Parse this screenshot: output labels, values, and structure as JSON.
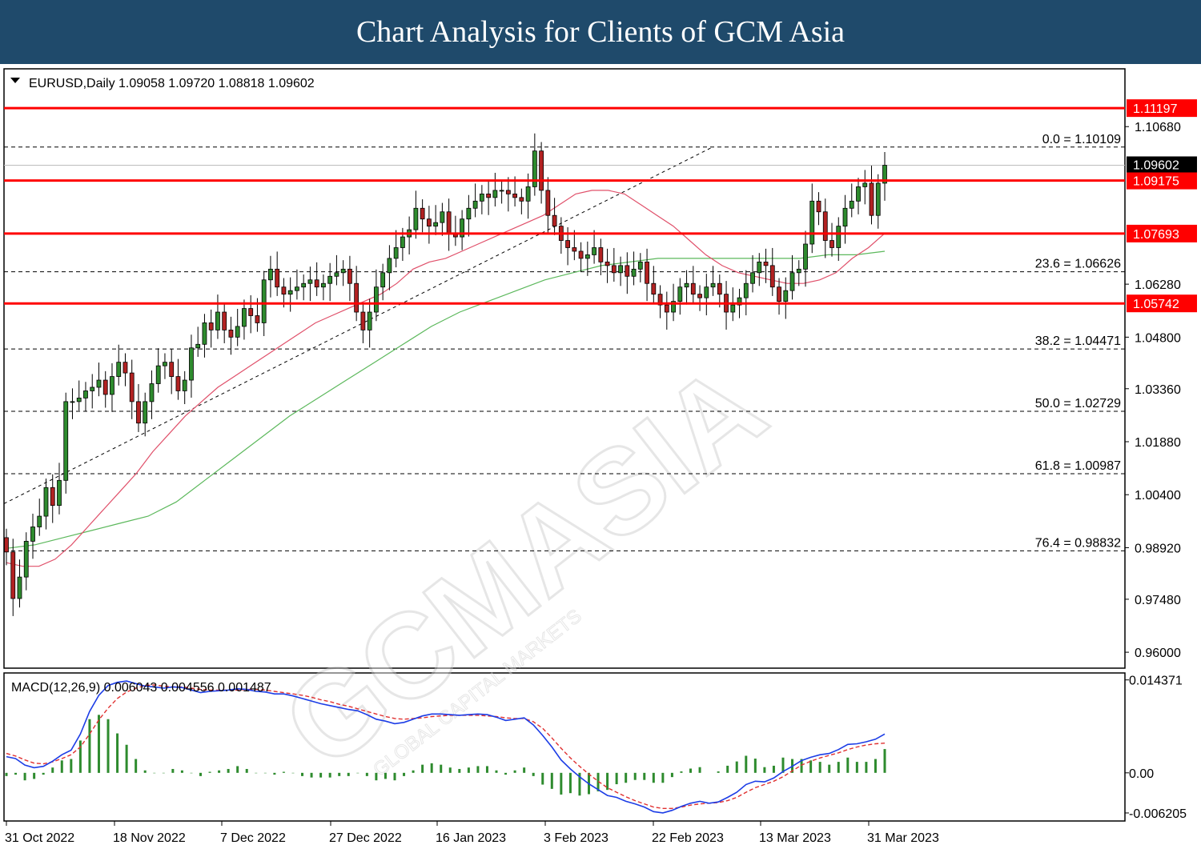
{
  "banner": {
    "title": "Chart Analysis for Clients of GCM Asia"
  },
  "watermark": {
    "brand": "GCMASIA",
    "tagline": "GLOBAL CAPITAL MARKETS"
  },
  "colors": {
    "banner": "#1f4a6b",
    "sr_line": "#ff0000",
    "bull": "#2e8b2e",
    "bear": "#b22222",
    "ma_fast": "#e0506a",
    "ma_slow": "#5cb85c",
    "macd": "#1c3de6",
    "signal": "#e03030",
    "hist": "#2e8b2e"
  },
  "chart_data": [
    {
      "type": "candlestick",
      "symbol": "EURUSD",
      "timeframe": "Daily",
      "header": "EURUSD,Daily  1.09058 1.09720 1.08818 1.09602",
      "ohlc_last": {
        "open": 1.09058,
        "high": 1.0972,
        "low": 1.08818,
        "close": 1.09602
      },
      "ylim": [
        0.956,
        1.1225
      ],
      "y_ticks": [
        "1.10680",
        "1.06280",
        "1.04800",
        "1.03360",
        "1.01880",
        "1.00400",
        "0.98920",
        "0.97480",
        "0.96000"
      ],
      "x_ticks": [
        "31 Oct 2022",
        "18 Nov 2022",
        "7 Dec 2022",
        "27 Dec 2022",
        "16 Jan 2023",
        "3 Feb 2023",
        "22 Feb 2023",
        "13 Mar 2023",
        "31 Mar 2023"
      ],
      "current_price_label": "1.09602",
      "support_resistance": [
        {
          "value": 1.11197,
          "label": "1.11197"
        },
        {
          "value": 1.09175,
          "label": "1.09175"
        },
        {
          "value": 1.07693,
          "label": "1.07693"
        },
        {
          "value": 1.05742,
          "label": "1.05742"
        }
      ],
      "fibonacci": [
        {
          "value": 1.10109,
          "label": "0.0 = 1.10109"
        },
        {
          "value": 1.06626,
          "label": "23.6 = 1.06626"
        },
        {
          "value": 1.04471,
          "label": "38.2 = 1.04471"
        },
        {
          "value": 1.02729,
          "label": "50.0 = 1.02729"
        },
        {
          "value": 1.00987,
          "label": "61.8 = 1.00987"
        },
        {
          "value": 0.98832,
          "label": "76.4 = 0.98832"
        }
      ],
      "closes": [
        0.988,
        0.975,
        0.981,
        0.991,
        0.995,
        0.998,
        1.006,
        1.001,
        1.008,
        1.03,
        1.03,
        1.031,
        1.033,
        1.034,
        1.036,
        1.032,
        1.037,
        1.041,
        1.038,
        1.03,
        1.024,
        1.03,
        1.035,
        1.04,
        1.041,
        1.037,
        1.033,
        1.036,
        1.045,
        1.046,
        1.052,
        1.05,
        1.055,
        1.05,
        1.048,
        1.051,
        1.056,
        1.054,
        1.052,
        1.064,
        1.067,
        1.062,
        1.06,
        1.061,
        1.062,
        1.063,
        1.064,
        1.062,
        1.063,
        1.065,
        1.066,
        1.067,
        1.063,
        1.055,
        1.05,
        1.055,
        1.062,
        1.066,
        1.07,
        1.073,
        1.076,
        1.078,
        1.084,
        1.081,
        1.079,
        1.08,
        1.083,
        1.077,
        1.076,
        1.081,
        1.084,
        1.086,
        1.088,
        1.087,
        1.089,
        1.089,
        1.088,
        1.087,
        1.086,
        1.09,
        1.1,
        1.089,
        1.082,
        1.079,
        1.075,
        1.073,
        1.072,
        1.07,
        1.071,
        1.073,
        1.069,
        1.068,
        1.066,
        1.068,
        1.065,
        1.067,
        1.069,
        1.063,
        1.06,
        1.057,
        1.055,
        1.058,
        1.062,
        1.063,
        1.06,
        1.059,
        1.062,
        1.063,
        1.06,
        1.055,
        1.057,
        1.059,
        1.063,
        1.066,
        1.069,
        1.068,
        1.062,
        1.058,
        1.061,
        1.066,
        1.067,
        1.074,
        1.086,
        1.083,
        1.075,
        1.073,
        1.079,
        1.084,
        1.086,
        1.09,
        1.091,
        1.082,
        1.091,
        1.096
      ],
      "ma_fast_values": [
        0.985,
        0.984,
        0.984,
        0.986,
        0.99,
        0.995,
        1.0,
        1.005,
        1.01,
        1.016,
        1.021,
        1.026,
        1.03,
        1.034,
        1.037,
        1.04,
        1.043,
        1.046,
        1.049,
        1.052,
        1.054,
        1.056,
        1.058,
        1.06,
        1.063,
        1.067,
        1.069,
        1.07,
        1.072,
        1.074,
        1.076,
        1.078,
        1.08,
        1.082,
        1.085,
        1.088,
        1.089,
        1.089,
        1.088,
        1.085,
        1.082,
        1.079,
        1.075,
        1.071,
        1.068,
        1.066,
        1.065,
        1.064,
        1.063,
        1.063,
        1.064,
        1.066,
        1.07,
        1.073,
        1.077
      ],
      "ma_slow_values": [
        0.989,
        0.99,
        0.992,
        0.994,
        0.996,
        0.998,
        1.002,
        1.008,
        1.014,
        1.02,
        1.026,
        1.031,
        1.036,
        1.041,
        1.046,
        1.051,
        1.055,
        1.058,
        1.061,
        1.064,
        1.066,
        1.068,
        1.069,
        1.07,
        1.07,
        1.07,
        1.07,
        1.07,
        1.07,
        1.071,
        1.071,
        1.072
      ],
      "ma_fast_legend": "",
      "ma_slow_legend": ""
    },
    {
      "type": "macd",
      "header": "MACD(12,26,9) 0.006043 0.004556 0.001487",
      "params": "12,26,9",
      "values": {
        "macd": 0.006043,
        "signal": 0.004556,
        "histogram": 0.001487
      },
      "ylim": [
        -0.0072,
        0.0152
      ],
      "y_ticks": [
        "0.014371",
        "0.00",
        "-0.006205"
      ],
      "macd_series": [
        0.0025,
        0.0022,
        0.0012,
        0.0008,
        0.001,
        0.0018,
        0.0028,
        0.0035,
        0.006,
        0.0095,
        0.012,
        0.0135,
        0.014,
        0.0142,
        0.0138,
        0.0134,
        0.0133,
        0.0131,
        0.0133,
        0.0132,
        0.0128,
        0.0124,
        0.0126,
        0.0127,
        0.0128,
        0.013,
        0.0129,
        0.0126,
        0.0125,
        0.0122,
        0.0122,
        0.0119,
        0.0115,
        0.0111,
        0.0107,
        0.0104,
        0.0101,
        0.0098,
        0.0096,
        0.009,
        0.0083,
        0.008,
        0.0076,
        0.0078,
        0.0083,
        0.0088,
        0.0091,
        0.0091,
        0.009,
        0.0089,
        0.009,
        0.0091,
        0.009,
        0.0086,
        0.0081,
        0.0083,
        0.0085,
        0.0074,
        0.0058,
        0.004,
        0.002,
        0.0006,
        -0.0006,
        -0.0017,
        -0.0026,
        -0.0035,
        -0.0038,
        -0.0044,
        -0.0048,
        -0.0053,
        -0.006,
        -0.0062,
        -0.0058,
        -0.0052,
        -0.0047,
        -0.0044,
        -0.0047,
        -0.0045,
        -0.0038,
        -0.003,
        -0.0018,
        -0.0013,
        -0.0014,
        -0.0008,
        0.0002,
        0.001,
        0.0019,
        0.0024,
        0.0028,
        0.003,
        0.0036,
        0.0044,
        0.0045,
        0.0048,
        0.0052,
        0.006
      ],
      "signal_series": [
        0.003,
        0.0026,
        0.002,
        0.0015,
        0.0014,
        0.0017,
        0.0022,
        0.0028,
        0.004,
        0.006,
        0.0082,
        0.01,
        0.0115,
        0.0125,
        0.0131,
        0.0135,
        0.0136,
        0.0134,
        0.0133,
        0.0133,
        0.0131,
        0.0129,
        0.0128,
        0.0128,
        0.0128,
        0.0128,
        0.0129,
        0.0129,
        0.0128,
        0.0126,
        0.0124,
        0.0122,
        0.012,
        0.0117,
        0.0113,
        0.011,
        0.0106,
        0.0103,
        0.0099,
        0.0095,
        0.0091,
        0.0087,
        0.0084,
        0.0083,
        0.0084,
        0.0085,
        0.0087,
        0.0088,
        0.0089,
        0.0089,
        0.0089,
        0.0089,
        0.0088,
        0.0087,
        0.0085,
        0.0084,
        0.0084,
        0.0079,
        0.0069,
        0.0054,
        0.0038,
        0.0023,
        0.001,
        -0.0002,
        -0.0013,
        -0.0023,
        -0.003,
        -0.0037,
        -0.0043,
        -0.0048,
        -0.0053,
        -0.0055,
        -0.0055,
        -0.0053,
        -0.005,
        -0.0048,
        -0.0047,
        -0.0046,
        -0.0043,
        -0.0038,
        -0.003,
        -0.0023,
        -0.0018,
        -0.0013,
        -0.0006,
        0.0003,
        0.0012,
        0.0018,
        0.0023,
        0.0027,
        0.0031,
        0.0036,
        0.004,
        0.0043,
        0.0045,
        0.0046
      ]
    }
  ]
}
